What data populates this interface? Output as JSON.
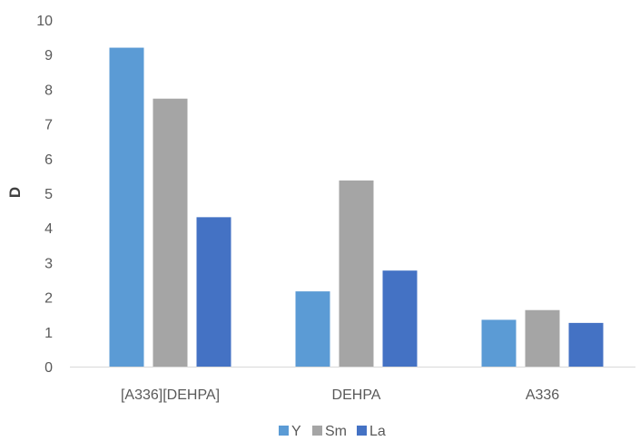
{
  "chart_data": {
    "type": "bar",
    "title": "",
    "xlabel": "",
    "ylabel": "D",
    "categories": [
      "[A336][DEHPA]",
      "DEHPA",
      "A336"
    ],
    "series": [
      {
        "name": "Y",
        "color": "#5B9BD5",
        "values": [
          9.2,
          2.17,
          1.35
        ]
      },
      {
        "name": "Sm",
        "color": "#A5A5A5",
        "values": [
          7.73,
          5.37,
          1.63
        ]
      },
      {
        "name": "La",
        "color": "#4472C4",
        "values": [
          4.31,
          2.77,
          1.26
        ]
      }
    ],
    "ylim": [
      0,
      10
    ],
    "yticks": [
      0,
      1,
      2,
      3,
      4,
      5,
      6,
      7,
      8,
      9,
      10
    ],
    "grid": false,
    "legend_position": "bottom"
  }
}
